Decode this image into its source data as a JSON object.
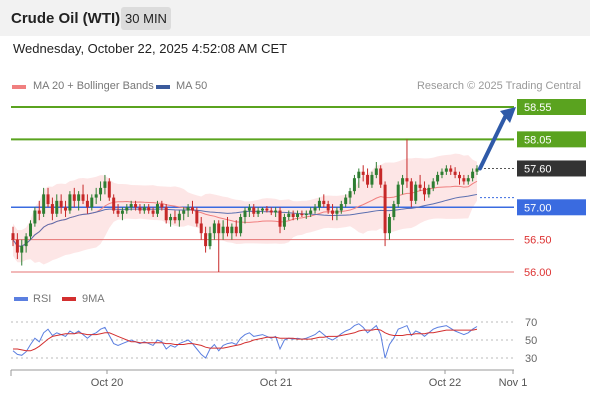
{
  "header": {
    "title": "Crude Oil (WTI)",
    "timeframe": "30 MIN"
  },
  "datetime": "Wednesday, October 22, 2025 4:52:08 AM CET",
  "legend": {
    "items": [
      {
        "label": "MA 20 + Bollinger Bands",
        "color": "#f07f7f"
      },
      {
        "label": "MA 50",
        "color": "#3b5b9c"
      }
    ],
    "credit": "Research © 2025 Trading Central"
  },
  "colors": {
    "up": "#2e7d32",
    "down": "#c62828",
    "green_level": "#5aa31f",
    "blue_level": "#3a6be0",
    "red_level": "#e57373",
    "rsi": "#5b7fe0",
    "rsi_ma": "#d32f2f"
  },
  "chart_data": [
    {
      "type": "candlestick",
      "price_axis": {
        "min": 56.0,
        "max": 58.55,
        "ticks": [
          56.0,
          56.5,
          57.0,
          57.6,
          58.05,
          58.55
        ]
      },
      "x_ticks": [
        "Oct 20",
        "Oct 21",
        "Oct 22",
        "Nov 1"
      ],
      "levels": [
        {
          "value": 58.55,
          "label": "58.55",
          "kind": "resistance"
        },
        {
          "value": 58.05,
          "label": "58.05",
          "kind": "resistance"
        },
        {
          "value": 57.6,
          "label": "57.60",
          "kind": "last"
        },
        {
          "value": 57.0,
          "label": "57.00",
          "kind": "pivot"
        },
        {
          "value": 56.5,
          "label": "56.50",
          "kind": "support"
        },
        {
          "value": 56.0,
          "label": "56.00",
          "kind": "support"
        }
      ],
      "ohlc": [
        [
          56.6,
          56.7,
          56.4,
          56.5
        ],
        [
          56.5,
          56.6,
          56.2,
          56.3
        ],
        [
          56.3,
          56.5,
          56.1,
          56.4
        ],
        [
          56.4,
          56.6,
          56.3,
          56.55
        ],
        [
          56.55,
          56.8,
          56.5,
          56.75
        ],
        [
          56.75,
          57.0,
          56.7,
          56.95
        ],
        [
          56.95,
          57.1,
          56.8,
          56.9
        ],
        [
          56.9,
          57.3,
          56.85,
          57.2
        ],
        [
          57.2,
          57.3,
          57.0,
          57.05
        ],
        [
          57.05,
          57.15,
          56.8,
          56.9
        ],
        [
          56.9,
          57.2,
          56.85,
          57.1
        ],
        [
          57.1,
          57.2,
          56.9,
          57.0
        ],
        [
          57.0,
          57.1,
          56.85,
          56.95
        ],
        [
          56.95,
          57.25,
          56.9,
          57.2
        ],
        [
          57.2,
          57.3,
          57.0,
          57.1
        ],
        [
          57.1,
          57.25,
          56.95,
          57.2
        ],
        [
          57.2,
          57.35,
          57.05,
          57.1
        ],
        [
          57.1,
          57.2,
          56.9,
          57.0
        ],
        [
          57.0,
          57.2,
          56.95,
          57.15
        ],
        [
          57.15,
          57.3,
          57.05,
          57.2
        ],
        [
          57.2,
          57.4,
          57.1,
          57.3
        ],
        [
          57.3,
          57.5,
          57.2,
          57.4
        ],
        [
          57.4,
          57.45,
          57.1,
          57.15
        ],
        [
          57.15,
          57.2,
          56.9,
          56.95
        ],
        [
          56.95,
          57.05,
          56.85,
          56.9
        ],
        [
          56.9,
          57.0,
          56.8,
          56.95
        ],
        [
          56.95,
          57.05,
          56.9,
          57.0
        ],
        [
          57.0,
          57.1,
          56.95,
          57.05
        ],
        [
          57.05,
          57.1,
          56.95,
          57.0
        ],
        [
          57.0,
          57.05,
          56.9,
          56.95
        ],
        [
          56.95,
          57.05,
          56.9,
          57.0
        ],
        [
          57.0,
          57.05,
          56.9,
          56.95
        ],
        [
          56.95,
          57.0,
          56.85,
          56.9
        ],
        [
          56.9,
          57.1,
          56.85,
          57.05
        ],
        [
          57.05,
          57.1,
          56.95,
          57.0
        ],
        [
          57.0,
          57.05,
          56.75,
          56.8
        ],
        [
          56.8,
          56.9,
          56.7,
          56.85
        ],
        [
          56.85,
          56.95,
          56.75,
          56.8
        ],
        [
          56.8,
          56.95,
          56.7,
          56.9
        ],
        [
          56.9,
          57.0,
          56.8,
          56.95
        ],
        [
          56.95,
          57.05,
          56.85,
          57.0
        ],
        [
          57.0,
          57.1,
          56.9,
          56.95
        ],
        [
          56.95,
          57.0,
          56.7,
          56.75
        ],
        [
          56.75,
          56.85,
          56.5,
          56.6
        ],
        [
          56.6,
          56.7,
          56.3,
          56.4
        ],
        [
          56.4,
          56.7,
          56.35,
          56.6
        ],
        [
          56.6,
          56.8,
          56.5,
          56.75
        ],
        [
          56.75,
          56.8,
          56.0,
          56.6
        ],
        [
          56.6,
          56.8,
          56.5,
          56.7
        ],
        [
          56.7,
          56.85,
          56.55,
          56.6
        ],
        [
          56.6,
          56.75,
          56.5,
          56.7
        ],
        [
          56.7,
          56.8,
          56.55,
          56.6
        ],
        [
          56.6,
          56.9,
          56.55,
          56.85
        ],
        [
          56.85,
          57.0,
          56.75,
          56.95
        ],
        [
          56.95,
          57.05,
          56.85,
          57.0
        ],
        [
          57.0,
          57.05,
          56.85,
          56.9
        ],
        [
          56.9,
          57.0,
          56.85,
          56.95
        ],
        [
          56.95,
          57.0,
          56.9,
          56.98
        ],
        [
          56.98,
          57.02,
          56.92,
          56.95
        ],
        [
          56.95,
          57.0,
          56.88,
          56.92
        ],
        [
          56.92,
          57.0,
          56.85,
          56.95
        ],
        [
          56.95,
          57.0,
          56.6,
          56.7
        ],
        [
          56.7,
          56.9,
          56.65,
          56.85
        ],
        [
          56.85,
          56.95,
          56.8,
          56.9
        ],
        [
          56.9,
          56.95,
          56.8,
          56.85
        ],
        [
          56.85,
          56.95,
          56.8,
          56.9
        ],
        [
          56.9,
          56.95,
          56.85,
          56.88
        ],
        [
          56.88,
          56.95,
          56.82,
          56.9
        ],
        [
          56.9,
          57.0,
          56.85,
          56.95
        ],
        [
          56.95,
          57.05,
          56.9,
          57.0
        ],
        [
          57.0,
          57.15,
          56.95,
          57.1
        ],
        [
          57.1,
          57.2,
          57.0,
          57.05
        ],
        [
          57.05,
          57.1,
          56.9,
          56.95
        ],
        [
          56.95,
          57.05,
          56.8,
          56.9
        ],
        [
          56.9,
          57.0,
          56.8,
          56.95
        ],
        [
          56.95,
          57.1,
          56.9,
          57.05
        ],
        [
          57.05,
          57.2,
          57.0,
          57.15
        ],
        [
          57.15,
          57.3,
          57.05,
          57.25
        ],
        [
          57.25,
          57.5,
          57.2,
          57.45
        ],
        [
          57.45,
          57.6,
          57.3,
          57.55
        ],
        [
          57.55,
          57.65,
          57.4,
          57.5
        ],
        [
          57.5,
          57.6,
          57.3,
          57.35
        ],
        [
          57.35,
          57.55,
          57.3,
          57.5
        ],
        [
          57.5,
          57.7,
          57.45,
          57.6
        ],
        [
          57.6,
          57.65,
          57.3,
          57.35
        ],
        [
          57.35,
          57.4,
          56.4,
          56.6
        ],
        [
          56.6,
          56.9,
          56.5,
          56.85
        ],
        [
          56.85,
          57.1,
          56.8,
          57.05
        ],
        [
          57.05,
          57.4,
          57.0,
          57.35
        ],
        [
          57.35,
          57.5,
          57.2,
          57.45
        ],
        [
          57.45,
          58.05,
          57.3,
          57.4
        ],
        [
          57.4,
          57.45,
          57.0,
          57.1
        ],
        [
          57.1,
          57.4,
          57.05,
          57.35
        ],
        [
          57.35,
          57.5,
          57.25,
          57.3
        ],
        [
          57.3,
          57.4,
          57.1,
          57.2
        ],
        [
          57.2,
          57.35,
          57.15,
          57.3
        ],
        [
          57.3,
          57.45,
          57.25,
          57.4
        ],
        [
          57.4,
          57.55,
          57.35,
          57.5
        ],
        [
          57.5,
          57.6,
          57.45,
          57.55
        ],
        [
          57.55,
          57.65,
          57.5,
          57.6
        ],
        [
          57.6,
          57.65,
          57.5,
          57.55
        ],
        [
          57.55,
          57.62,
          57.45,
          57.5
        ],
        [
          57.5,
          57.55,
          57.35,
          57.45
        ],
        [
          57.45,
          57.5,
          57.35,
          57.4
        ],
        [
          57.4,
          57.5,
          57.35,
          57.45
        ],
        [
          57.45,
          57.6,
          57.4,
          57.55
        ],
        [
          57.55,
          57.65,
          57.5,
          57.6
        ]
      ],
      "forecast_target": 58.55
    },
    {
      "type": "line",
      "series": [
        {
          "name": "RSI"
        },
        {
          "name": "9MA"
        }
      ],
      "y_ticks": [
        70,
        50,
        30
      ],
      "ylim": [
        20,
        80
      ],
      "rsi": [
        38,
        34,
        33,
        37,
        45,
        52,
        48,
        58,
        62,
        55,
        58,
        56,
        54,
        60,
        57,
        60,
        56,
        52,
        56,
        58,
        62,
        64,
        55,
        46,
        44,
        46,
        48,
        50,
        48,
        46,
        48,
        46,
        44,
        50,
        48,
        40,
        44,
        42,
        46,
        48,
        50,
        46,
        40,
        34,
        30,
        40,
        45,
        38,
        44,
        46,
        47,
        45,
        52,
        56,
        58,
        54,
        55,
        56,
        54,
        52,
        54,
        40,
        50,
        52,
        51,
        52,
        51,
        52,
        54,
        56,
        60,
        56,
        52,
        50,
        53,
        57,
        60,
        62,
        66,
        68,
        64,
        58,
        62,
        66,
        56,
        30,
        45,
        52,
        62,
        64,
        66,
        55,
        60,
        58,
        54,
        58,
        62,
        64,
        65,
        66,
        63,
        60,
        58,
        56,
        58,
        62,
        65
      ],
      "rsi_ma": [
        40,
        40,
        39,
        38,
        38,
        40,
        43,
        47,
        51,
        54,
        55,
        56,
        57,
        57,
        57,
        58,
        57,
        56,
        56,
        56,
        57,
        58,
        58,
        56,
        54,
        52,
        50,
        48,
        48,
        47,
        47,
        47,
        47,
        47,
        47,
        46,
        46,
        45,
        45,
        45,
        46,
        46,
        45,
        44,
        42,
        41,
        41,
        41,
        41,
        42,
        43,
        44,
        45,
        47,
        48,
        50,
        51,
        52,
        53,
        53,
        53,
        52,
        52,
        52,
        52,
        51,
        51,
        51,
        51,
        52,
        53,
        53,
        54,
        54,
        54,
        55,
        56,
        57,
        58,
        60,
        61,
        61,
        61,
        62,
        61,
        58,
        56,
        55,
        55,
        55,
        56,
        56,
        57,
        57,
        57,
        58,
        58,
        59,
        60,
        61,
        61,
        61,
        61,
        61,
        61,
        61,
        62
      ]
    }
  ]
}
